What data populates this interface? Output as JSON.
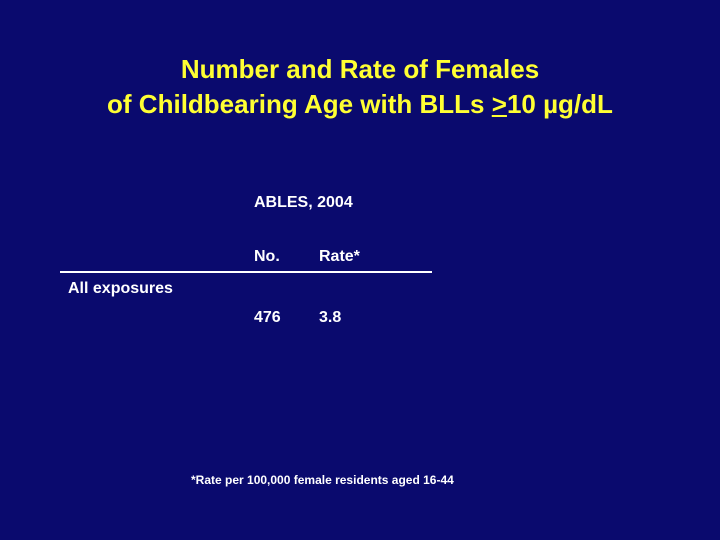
{
  "title": {
    "line1": "Number and Rate of Females",
    "line2_prefix": "of Childbearing Age with BLLs ",
    "line2_underlined": ">",
    "line2_suffix": "10 µg/dL"
  },
  "table": {
    "caption": "ABLES, 2004",
    "columns": [
      "No.",
      "Rate*"
    ],
    "rows": [
      {
        "label": "All exposures",
        "values": [
          "476",
          "3.8"
        ]
      }
    ]
  },
  "footnote": "*Rate per 100,000 female residents aged 16-44",
  "colors": {
    "background": "#0a0a6e",
    "title": "#ffff33",
    "text": "#ffffff"
  }
}
